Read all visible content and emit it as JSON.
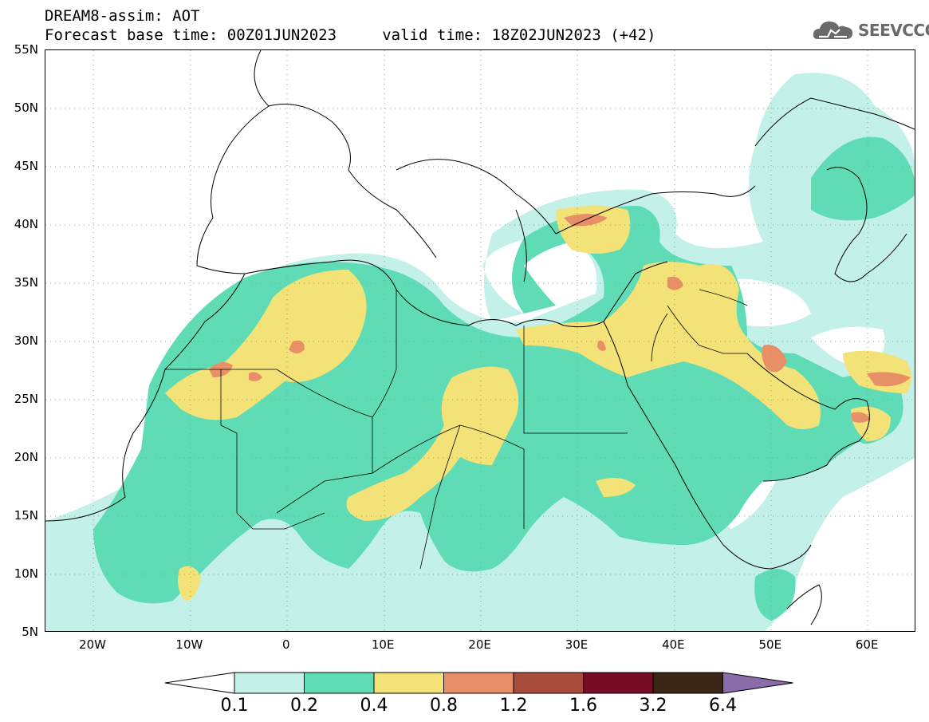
{
  "title_line1": "DREAM8-assim: AOT",
  "title_line2": "Forecast base time: 00Z01JUN2023     valid time: 18Z02JUN2023 (+42)",
  "logo": {
    "icon": "cloud-icon",
    "text": "SEEVCCC"
  },
  "lat_labels": [
    "55N",
    "50N",
    "45N",
    "40N",
    "35N",
    "30N",
    "25N",
    "20N",
    "15N",
    "10N",
    "5N"
  ],
  "lon_labels": [
    "20W",
    "10W",
    "0",
    "10E",
    "20E",
    "30E",
    "40E",
    "50E",
    "60E"
  ],
  "colorbar": {
    "colors": [
      "#ffffff",
      "#c4f0ea",
      "#5fdcb6",
      "#f2e277",
      "#e98f67",
      "#a84d3e",
      "#750c24",
      "#3a2415",
      "#8b6cab"
    ],
    "labels": [
      "0.1",
      "0.2",
      "0.4",
      "0.8",
      "1.2",
      "1.6",
      "3.2",
      "6.4"
    ]
  }
}
